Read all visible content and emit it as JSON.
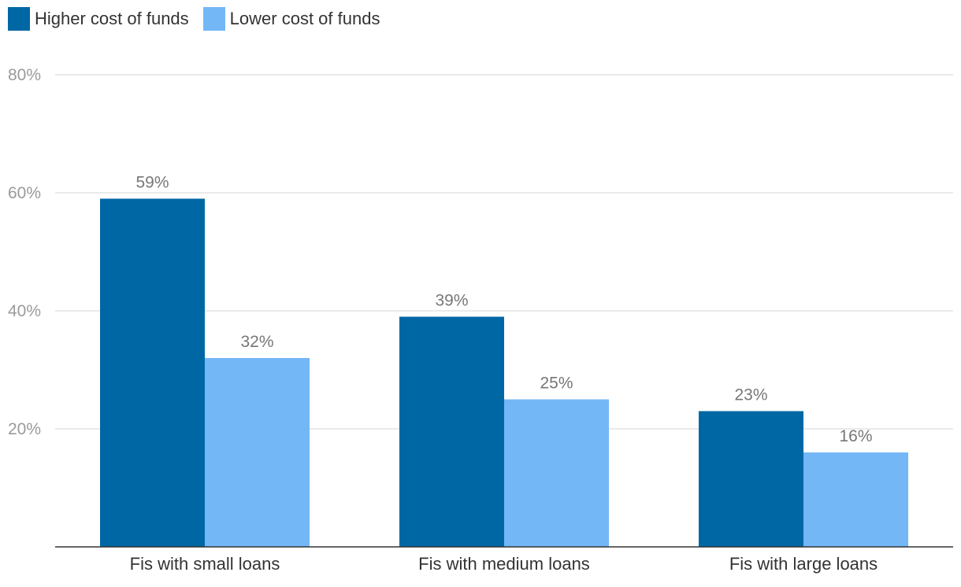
{
  "chart_data": {
    "type": "bar",
    "categories": [
      "Fis with small loans",
      "Fis with medium loans",
      "Fis with large loans"
    ],
    "series": [
      {
        "name": "Higher cost of funds",
        "values": [
          59,
          39,
          23
        ],
        "labels": [
          "59%",
          "39%",
          "23%"
        ],
        "color": "#0067a5"
      },
      {
        "name": "Lower cost of funds",
        "values": [
          32,
          25,
          16
        ],
        "labels": [
          "32%",
          "25%",
          "16%"
        ],
        "color": "#74b7f7"
      }
    ],
    "yticks": [
      20,
      40,
      60,
      80
    ],
    "ytick_labels": [
      "20%",
      "40%",
      "60%",
      "80%"
    ],
    "ylim": [
      0,
      80
    ],
    "grid": true,
    "legend_position": "top-left"
  }
}
